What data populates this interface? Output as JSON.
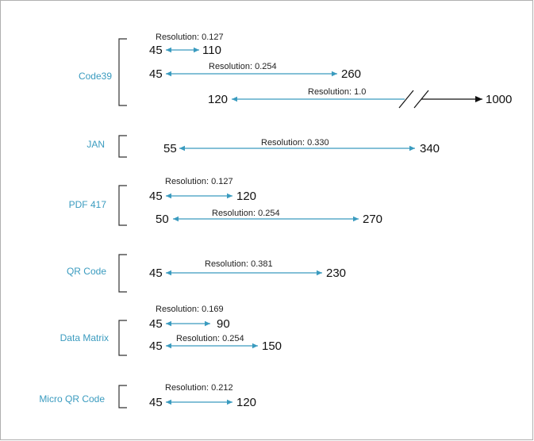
{
  "colors": {
    "category_text": "#3a9bbf",
    "arrow": "#3a9bbf",
    "long_range_arrow": "#111111",
    "frame": "#b0b0b0",
    "bracket": "#333333"
  },
  "groups": [
    {
      "name": "Code39",
      "ranges": [
        {
          "resolution": "Resolution: 0.127",
          "min": "45",
          "max": "110"
        },
        {
          "resolution": "Resolution: 0.254",
          "min": "45",
          "max": "260"
        },
        {
          "resolution": "Resolution: 1.0",
          "min": "120",
          "max": "1000",
          "broken_axis": true
        }
      ]
    },
    {
      "name": "JAN",
      "ranges": [
        {
          "resolution": "Resolution: 0.330",
          "min": "55",
          "max": "340"
        }
      ]
    },
    {
      "name": "PDF 417",
      "ranges": [
        {
          "resolution": "Resolution: 0.127",
          "min": "45",
          "max": "120"
        },
        {
          "resolution": "Resolution: 0.254",
          "min": "50",
          "max": "270"
        }
      ]
    },
    {
      "name": "QR Code",
      "ranges": [
        {
          "resolution": "Resolution: 0.381",
          "min": "45",
          "max": "230"
        }
      ]
    },
    {
      "name": "Data Matrix",
      "ranges": [
        {
          "resolution": "Resolution: 0.169",
          "min": "45",
          "max": "90"
        },
        {
          "resolution": "Resolution: 0.254",
          "min": "45",
          "max": "150"
        }
      ]
    },
    {
      "name": "Micro QR Code",
      "ranges": [
        {
          "resolution": "Resolution: 0.212",
          "min": "45",
          "max": "120"
        }
      ]
    }
  ]
}
